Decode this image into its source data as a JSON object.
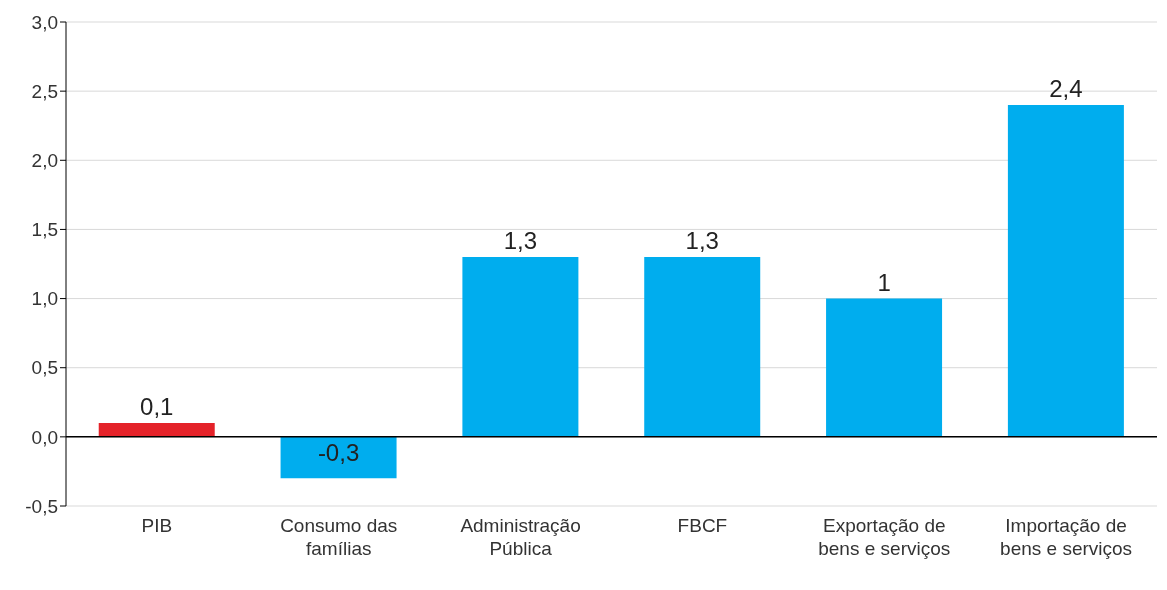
{
  "chart_data": {
    "type": "bar",
    "categories": [
      "PIB",
      "Consumo das famílias",
      "Administração Pública",
      "FBCF",
      "Exportação de bens e serviços",
      "Importação de bens e serviços"
    ],
    "values": [
      0.1,
      -0.3,
      1.3,
      1.3,
      1.0,
      2.4
    ],
    "colors": [
      "#e42229",
      "#00adee",
      "#00adee",
      "#00adee",
      "#00adee",
      "#00adee"
    ],
    "value_labels": [
      "0,1",
      "-0,3",
      "1,3",
      "1,3",
      "1",
      "2,4"
    ],
    "ylim": [
      -0.5,
      3.0
    ],
    "yticks": [
      {
        "value": -0.5,
        "label": "-0,5"
      },
      {
        "value": 0,
        "label": "0,0"
      },
      {
        "value": 0.5,
        "label": "0,5"
      },
      {
        "value": 1.0,
        "label": "1,0"
      },
      {
        "value": 1.5,
        "label": "1,5"
      },
      {
        "value": 2.0,
        "label": "2,0"
      },
      {
        "value": 2.5,
        "label": "2,5"
      },
      {
        "value": 3.0,
        "label": "3,0"
      }
    ],
    "grid": "y",
    "legend": false
  }
}
